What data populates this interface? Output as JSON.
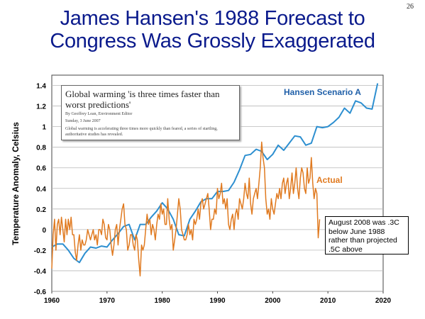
{
  "page_number": "26",
  "title_line1": "James Hansen's 1988 Forecast to",
  "title_line2": "Congress Was Grossly Exaggerated",
  "clipping": {
    "headline": "Global warming 'is three times faster than worst predictions'",
    "byline": "By Geoffrey Lean, Environment Editor",
    "date": "Sunday, 3 June 2007",
    "body": "Global warming is accelerating three times more quickly than feared, a series of startling, authoritative studies has revealed."
  },
  "note": "August 2008 was .3C below June 1988 rather than projected .5C above",
  "colors": {
    "title": "#0a1a8c",
    "scenario": "#2d8fd0",
    "actual": "#e07a20"
  },
  "chart_data": {
    "type": "line",
    "ylabel": "Temperature Anomaly, Celsius",
    "xlim": [
      1960,
      2020
    ],
    "ylim": [
      -0.6,
      1.5
    ],
    "x_ticks": [
      "1960",
      "1970",
      "1980",
      "1990",
      "2000",
      "2010",
      "2020"
    ],
    "y_ticks": [
      "-0.6",
      "-0.4",
      "-0.2",
      "0",
      "0.2",
      "0.4",
      "0.6",
      "0.8",
      "1",
      "1.2",
      "1.4"
    ],
    "grid": "horizontal",
    "series": [
      {
        "name": "Hansen Scenario A",
        "x": [
          1960,
          1961,
          1962,
          1963,
          1964,
          1965,
          1966,
          1967,
          1968,
          1969,
          1970,
          1971,
          1972,
          1973,
          1974,
          1975,
          1976,
          1977,
          1978,
          1979,
          1980,
          1981,
          1982,
          1983,
          1984,
          1985,
          1986,
          1987,
          1988,
          1989,
          1990,
          1991,
          1992,
          1993,
          1994,
          1995,
          1996,
          1997,
          1998,
          1999,
          2000,
          2001,
          2002,
          2003,
          2004,
          2005,
          2006,
          2007,
          2008,
          2009,
          2010,
          2011,
          2012,
          2013,
          2014,
          2015,
          2016,
          2017,
          2018,
          2019
        ],
        "y": [
          -0.17,
          -0.14,
          -0.14,
          -0.2,
          -0.28,
          -0.32,
          -0.23,
          -0.17,
          -0.18,
          -0.16,
          -0.17,
          -0.1,
          -0.04,
          0.03,
          0.05,
          -0.1,
          0.05,
          0.05,
          0.12,
          0.18,
          0.26,
          0.2,
          0.1,
          -0.05,
          -0.06,
          0.1,
          0.18,
          0.27,
          0.3,
          0.3,
          0.37,
          0.37,
          0.38,
          0.46,
          0.58,
          0.72,
          0.73,
          0.78,
          0.76,
          0.68,
          0.73,
          0.82,
          0.77,
          0.84,
          0.91,
          0.9,
          0.82,
          0.84,
          1.0,
          0.99,
          1.0,
          1.04,
          1.09,
          1.18,
          1.13,
          1.25,
          1.23,
          1.18,
          1.17,
          1.42
        ]
      },
      {
        "name": "Actual",
        "x": [
          1960.0,
          1960.25,
          1960.5,
          1960.75,
          1961.0,
          1961.25,
          1961.5,
          1961.75,
          1962.0,
          1962.25,
          1962.5,
          1962.75,
          1963.0,
          1963.25,
          1963.5,
          1963.75,
          1964.0,
          1964.25,
          1964.5,
          1964.75,
          1965.0,
          1965.25,
          1965.5,
          1965.75,
          1966.0,
          1966.25,
          1966.5,
          1966.75,
          1967.0,
          1967.25,
          1967.5,
          1967.75,
          1968.0,
          1968.25,
          1968.5,
          1968.75,
          1969.0,
          1969.25,
          1969.5,
          1969.75,
          1970.0,
          1970.25,
          1970.5,
          1970.75,
          1971.0,
          1971.25,
          1971.5,
          1971.75,
          1972.0,
          1972.25,
          1972.5,
          1972.75,
          1973.0,
          1973.25,
          1973.5,
          1973.75,
          1974.0,
          1974.25,
          1974.5,
          1974.75,
          1975.0,
          1975.25,
          1975.5,
          1975.75,
          1976.0,
          1976.25,
          1976.5,
          1976.75,
          1977.0,
          1977.25,
          1977.5,
          1977.75,
          1978.0,
          1978.25,
          1978.5,
          1978.75,
          1979.0,
          1979.25,
          1979.5,
          1979.75,
          1980.0,
          1980.25,
          1980.5,
          1980.75,
          1981.0,
          1981.25,
          1981.5,
          1981.75,
          1982.0,
          1982.25,
          1982.5,
          1982.75,
          1983.0,
          1983.25,
          1983.5,
          1983.75,
          1984.0,
          1984.25,
          1984.5,
          1984.75,
          1985.0,
          1985.25,
          1985.5,
          1985.75,
          1986.0,
          1986.25,
          1986.5,
          1986.75,
          1987.0,
          1987.25,
          1987.5,
          1987.75,
          1988.0,
          1988.25,
          1988.5,
          1988.75,
          1989.0,
          1989.25,
          1989.5,
          1989.75,
          1990.0,
          1990.25,
          1990.5,
          1990.75,
          1991.0,
          1991.25,
          1991.5,
          1991.75,
          1992.0,
          1992.25,
          1992.5,
          1992.75,
          1993.0,
          1993.25,
          1993.5,
          1993.75,
          1994.0,
          1994.25,
          1994.5,
          1994.75,
          1995.0,
          1995.25,
          1995.5,
          1995.75,
          1996.0,
          1996.25,
          1996.5,
          1996.75,
          1997.0,
          1997.25,
          1997.5,
          1997.75,
          1998.0,
          1998.25,
          1998.5,
          1998.75,
          1999.0,
          1999.25,
          1999.5,
          1999.75,
          2000.0,
          2000.25,
          2000.5,
          2000.75,
          2001.0,
          2001.25,
          2001.5,
          2001.75,
          2002.0,
          2002.25,
          2002.5,
          2002.75,
          2003.0,
          2003.25,
          2003.5,
          2003.75,
          2004.0,
          2004.25,
          2004.5,
          2004.75,
          2005.0,
          2005.25,
          2005.5,
          2005.75,
          2006.0,
          2006.25,
          2006.5,
          2006.75,
          2007.0,
          2007.25,
          2007.5,
          2007.75,
          2008.0,
          2008.25,
          2008.5
        ],
        "y": [
          -0.38,
          -0.05,
          0.1,
          -0.2,
          0.05,
          0.1,
          -0.05,
          0.12,
          0.0,
          -0.12,
          0.1,
          -0.05,
          0.1,
          0.0,
          0.12,
          -0.05,
          -0.05,
          -0.22,
          -0.3,
          -0.15,
          -0.05,
          -0.2,
          -0.1,
          -0.15,
          -0.15,
          -0.1,
          0.0,
          -0.05,
          -0.1,
          -0.05,
          0.0,
          -0.1,
          -0.05,
          -0.15,
          0.0,
          0.0,
          -0.05,
          0.1,
          0.05,
          -0.08,
          -0.1,
          0.05,
          0.0,
          -0.15,
          -0.25,
          -0.15,
          0.0,
          0.05,
          -0.15,
          0.0,
          0.1,
          0.2,
          0.25,
          0.05,
          0.0,
          -0.2,
          -0.15,
          -0.05,
          -0.05,
          -0.15,
          -0.2,
          -0.05,
          -0.1,
          -0.3,
          -0.45,
          -0.15,
          -0.2,
          -0.15,
          0.0,
          0.15,
          0.05,
          0.1,
          -0.05,
          0.05,
          0.0,
          -0.1,
          0.05,
          0.15,
          0.1,
          0.25,
          0.15,
          0.2,
          0.05,
          0.05,
          0.3,
          0.1,
          0.0,
          0.05,
          -0.2,
          -0.1,
          0.0,
          0.15,
          0.3,
          0.2,
          0.0,
          -0.05,
          -0.1,
          -0.1,
          -0.05,
          0.05,
          -0.05,
          0.0,
          -0.1,
          0.1,
          0.05,
          0.1,
          0.2,
          0.1,
          0.25,
          0.3,
          0.2,
          0.25,
          0.3,
          0.35,
          0.2,
          0.0,
          0.1,
          0.1,
          0.2,
          0.15,
          0.4,
          0.3,
          0.35,
          0.45,
          0.25,
          0.3,
          0.2,
          0.3,
          0.05,
          0.0,
          0.1,
          0.15,
          0.0,
          0.15,
          0.2,
          0.1,
          0.3,
          0.25,
          0.2,
          0.3,
          0.45,
          0.35,
          0.3,
          0.5,
          0.25,
          0.15,
          0.3,
          0.35,
          0.4,
          0.3,
          0.45,
          0.6,
          0.85,
          0.7,
          0.6,
          0.3,
          0.15,
          0.2,
          0.1,
          0.3,
          0.2,
          0.15,
          0.25,
          0.35,
          0.3,
          0.4,
          0.3,
          0.45,
          0.5,
          0.35,
          0.45,
          0.5,
          0.3,
          0.4,
          0.55,
          0.35,
          0.45,
          0.6,
          0.4,
          0.3,
          0.5,
          0.6,
          0.55,
          0.4,
          0.35,
          0.6,
          0.45,
          0.5,
          0.7,
          0.45,
          0.3,
          0.4,
          0.35,
          -0.08,
          0.1
        ]
      }
    ],
    "annotations": [
      "Hansen Scenario A",
      "Actual"
    ]
  }
}
